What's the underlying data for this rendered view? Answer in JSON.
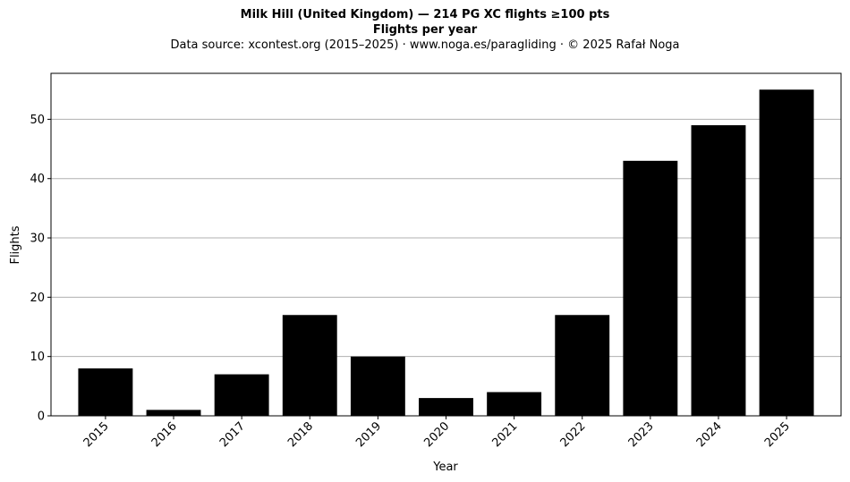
{
  "chart_data": {
    "type": "bar",
    "title": "Milk Hill (United Kingdom)  —  214 PG XC flights ≥100 pts",
    "subtitle": "Flights per year",
    "source_line": "Data source: xcontest.org (2015–2025)  ·  www.noga.es/paragliding  ·  © 2025 Rafał Noga",
    "xlabel": "Year",
    "ylabel": "Flights",
    "categories": [
      "2015",
      "2016",
      "2017",
      "2018",
      "2019",
      "2020",
      "2021",
      "2022",
      "2023",
      "2024",
      "2025"
    ],
    "values": [
      8,
      1,
      7,
      17,
      10,
      3,
      4,
      17,
      43,
      49,
      55
    ],
    "ylim": [
      0,
      57.75
    ],
    "yticks": [
      0,
      10,
      20,
      30,
      40,
      50
    ],
    "grid": "y",
    "bar_color": "#000000",
    "grid_color": "#b0b0b0"
  }
}
